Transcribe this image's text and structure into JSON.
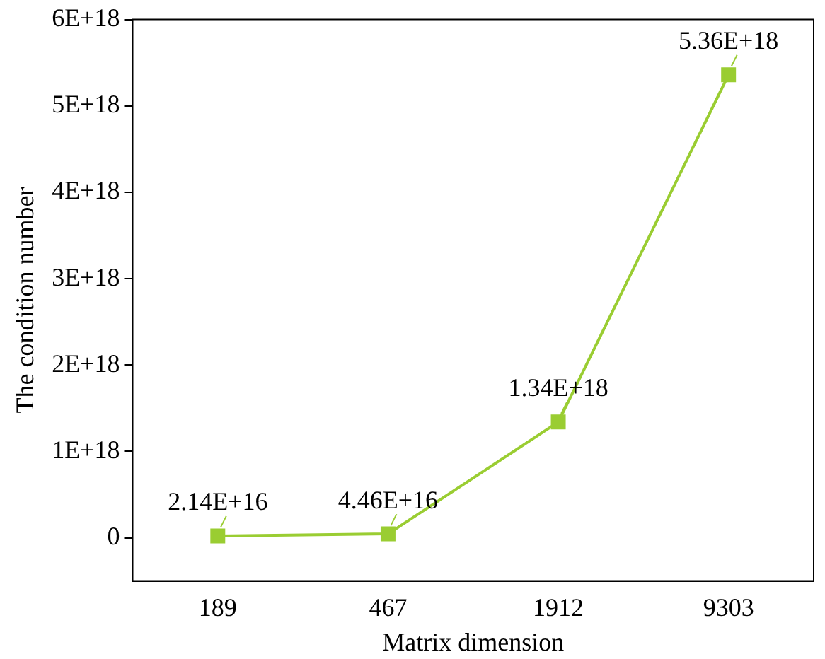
{
  "chart_data": {
    "type": "line",
    "xlabel": "Matrix dimension",
    "ylabel": "The condition number",
    "categories": [
      "189",
      "467",
      "1912",
      "9303"
    ],
    "series": [
      {
        "color": "#9acd32",
        "values": [
          2.14e+16,
          4.46e+16,
          1.34e+18,
          5.36e+18
        ],
        "value_labels": [
          "2.14E+16",
          "4.46E+16",
          "1.34E+18",
          "5.36E+18"
        ]
      }
    ],
    "ylim": [
      -5e+17,
      6e+18
    ],
    "yticks": [
      {
        "value": 0,
        "label": "0"
      },
      {
        "value": 1e+18,
        "label": "1E+18"
      },
      {
        "value": 2e+18,
        "label": "2E+18"
      },
      {
        "value": 3e+18,
        "label": "3E+18"
      },
      {
        "value": 4e+18,
        "label": "4E+18"
      },
      {
        "value": 5e+18,
        "label": "5E+18"
      },
      {
        "value": 6e+18,
        "label": "6E+18"
      }
    ],
    "marker": "square",
    "line_style": "solid",
    "grid": false,
    "legend": false
  }
}
